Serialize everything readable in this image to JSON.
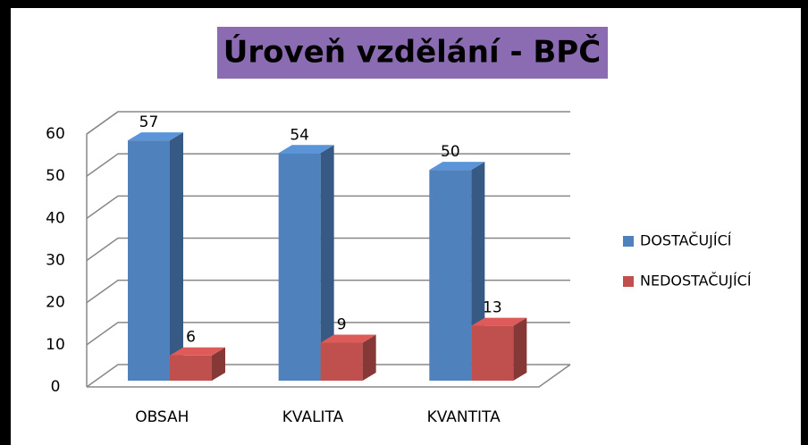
{
  "chart_data": {
    "type": "bar3d",
    "title": "Úroveň vzdělání - BPČ",
    "categories": [
      "OBSAH",
      "KVALITA",
      "KVANTITA"
    ],
    "series": [
      {
        "name": "DOSTAČUJÍCÍ",
        "color": "#4f81bd",
        "values": [
          57,
          54,
          50
        ]
      },
      {
        "name": "NEDOSTAČUJÍCÍ",
        "color": "#c0504d",
        "values": [
          6,
          9,
          13
        ]
      }
    ],
    "ylim": [
      0,
      60
    ],
    "yticks": [
      0,
      10,
      20,
      30,
      40,
      50,
      60
    ],
    "grid": true,
    "legend": "right"
  }
}
